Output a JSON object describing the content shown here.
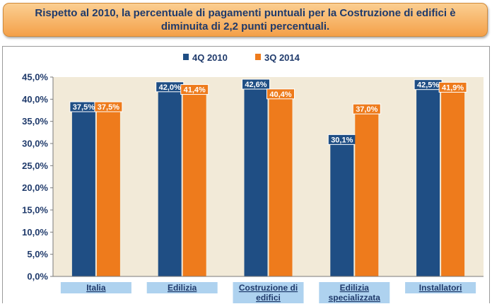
{
  "banner": {
    "line1": "Rispetto al 2010, la percentuale di pagamenti puntuali per la Costruzione di edifici è",
    "line2": "diminuita di 2,2 punti percentuali."
  },
  "chart_data": {
    "type": "bar",
    "categories": [
      [
        "Italia"
      ],
      [
        "Edilizia"
      ],
      [
        "Costruzione di",
        "edifici"
      ],
      [
        "Edilizia",
        "specializzata"
      ],
      [
        "Installatori"
      ]
    ],
    "series": [
      {
        "name": "4Q 2010",
        "color": "#1f4e84",
        "values": [
          37.5,
          42.0,
          42.6,
          30.1,
          42.5
        ],
        "labels": [
          "37,5%",
          "42,0%",
          "42,6%",
          "30,1%",
          "42,5%"
        ]
      },
      {
        "name": "3Q 2014",
        "color": "#ee7b1c",
        "values": [
          37.5,
          41.4,
          40.4,
          37.0,
          41.9
        ],
        "labels": [
          "37,5%",
          "41,4%",
          "40,4%",
          "37,0%",
          "41,9%"
        ]
      }
    ],
    "ylim": [
      0,
      45
    ],
    "yticks": [
      0,
      5,
      10,
      15,
      20,
      25,
      30,
      35,
      40,
      45
    ],
    "ytick_labels": [
      "0,0%",
      "5,0%",
      "10,0%",
      "15,0%",
      "20,0%",
      "25,0%",
      "30,0%",
      "35,0%",
      "40,0%",
      "45,0%"
    ],
    "legend_position": "top-center",
    "grid": false,
    "plot_background": "#f2ead8",
    "category_label_background": "#aed2ef"
  }
}
